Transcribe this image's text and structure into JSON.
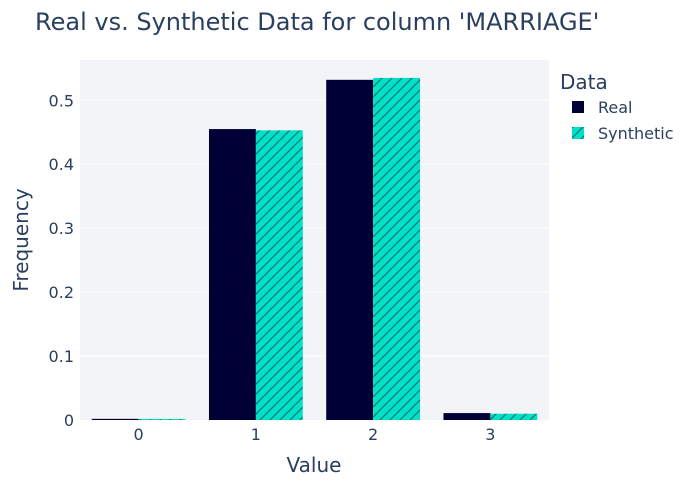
{
  "chart_data": {
    "type": "bar",
    "title": "Real vs. Synthetic Data for column 'MARRIAGE'",
    "xlabel": "Value",
    "ylabel": "Frequency",
    "categories": [
      "0",
      "1",
      "2",
      "3"
    ],
    "series": [
      {
        "name": "Real",
        "values": [
          0.0018,
          0.455,
          0.532,
          0.0108
        ],
        "color": "#000036",
        "pattern": "solid"
      },
      {
        "name": "Synthetic",
        "values": [
          0.0015,
          0.453,
          0.535,
          0.0098
        ],
        "color": "#01E0C9",
        "pattern": "diagonal-hatch"
      }
    ],
    "yticks": [
      "0",
      "0.1",
      "0.2",
      "0.3",
      "0.4",
      "0.5"
    ],
    "ylim": [
      0,
      0.563
    ],
    "grid": true,
    "legend": {
      "title": "Data",
      "placement": "top-right-outside"
    },
    "colors": {
      "plot_bg": "#E5ECF6",
      "grid": "#ffffff",
      "text": "#2a3f5f"
    }
  }
}
